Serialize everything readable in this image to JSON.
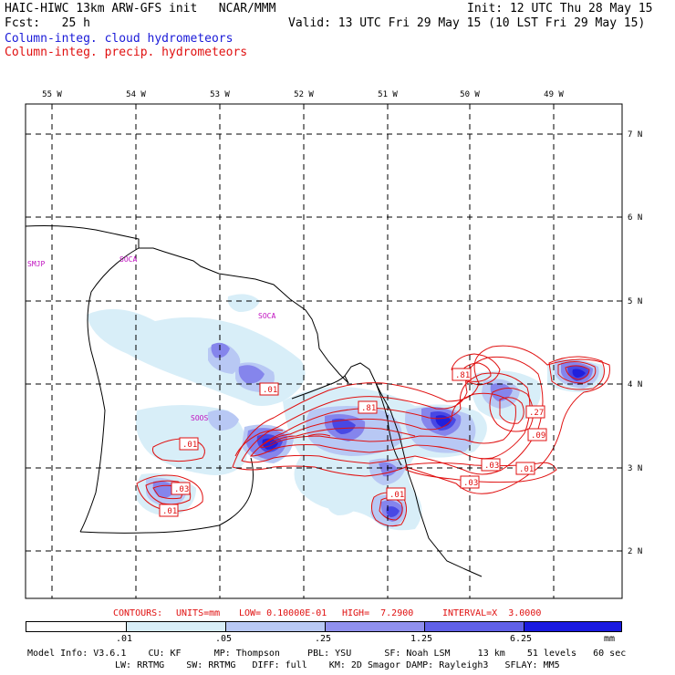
{
  "header": {
    "model_title": "HAIC-HIWC 13km ARW-GFS init   NCAR/MMM",
    "init": "Init: 12 UTC Thu 28 May 15",
    "fcst": "Fcst:   25 h",
    "valid": "Valid: 13 UTC Fri 29 May 15 (10 LST Fri 29 May 15)",
    "field_cloud": "Column-integ. cloud hydrometeors",
    "field_precip": "Column-integ. precip. hydrometeors"
  },
  "map": {
    "lon_labels": [
      "55 W",
      "54 W",
      "53 W",
      "52 W",
      "51 W",
      "50 W",
      "49 W"
    ],
    "lat_labels": [
      "7 N",
      "6 N",
      "5 N",
      "4 N",
      "3 N",
      "2 N"
    ],
    "station_labels": [
      "SMJP",
      "SOCA",
      "SOCA",
      "SOOS"
    ],
    "contour_labels": [
      ".01",
      ".81",
      ".81",
      ".27",
      ".09",
      ".03",
      ".01",
      ".03",
      ".01",
      ".03",
      ".01",
      ".01"
    ],
    "colors": {
      "cloud": "#1a1ad8",
      "precip": "#e01010",
      "stations": "#c010c0"
    }
  },
  "contour_info": {
    "contours": "CONTOURS:",
    "units": "UNITS=mm",
    "low": "LOW= 0.10000E-01",
    "high": "HIGH=  7.2900",
    "interval": "INTERVAL=X  3.0000"
  },
  "colorbar": {
    "labels": [
      ".01",
      ".05",
      ".25",
      "1.25",
      "6.25"
    ],
    "unit": "mm",
    "colors": [
      "#ffffff",
      "#d8eef8",
      "#b8c8f4",
      "#9090ee",
      "#6060e8",
      "#3030e0",
      "#1010e0"
    ]
  },
  "model_info": {
    "line1": "Model Info: V3.6.1    CU: KF      MP: Thompson     PBL: YSU      SF: Noah LSM     13 km    51 levels   60 sec",
    "line2": "LW: RRTMG    SW: RRTMG   DIFF: full    KM: 2D Smagor DAMP: Rayleigh3   SFLAY: MM5"
  }
}
